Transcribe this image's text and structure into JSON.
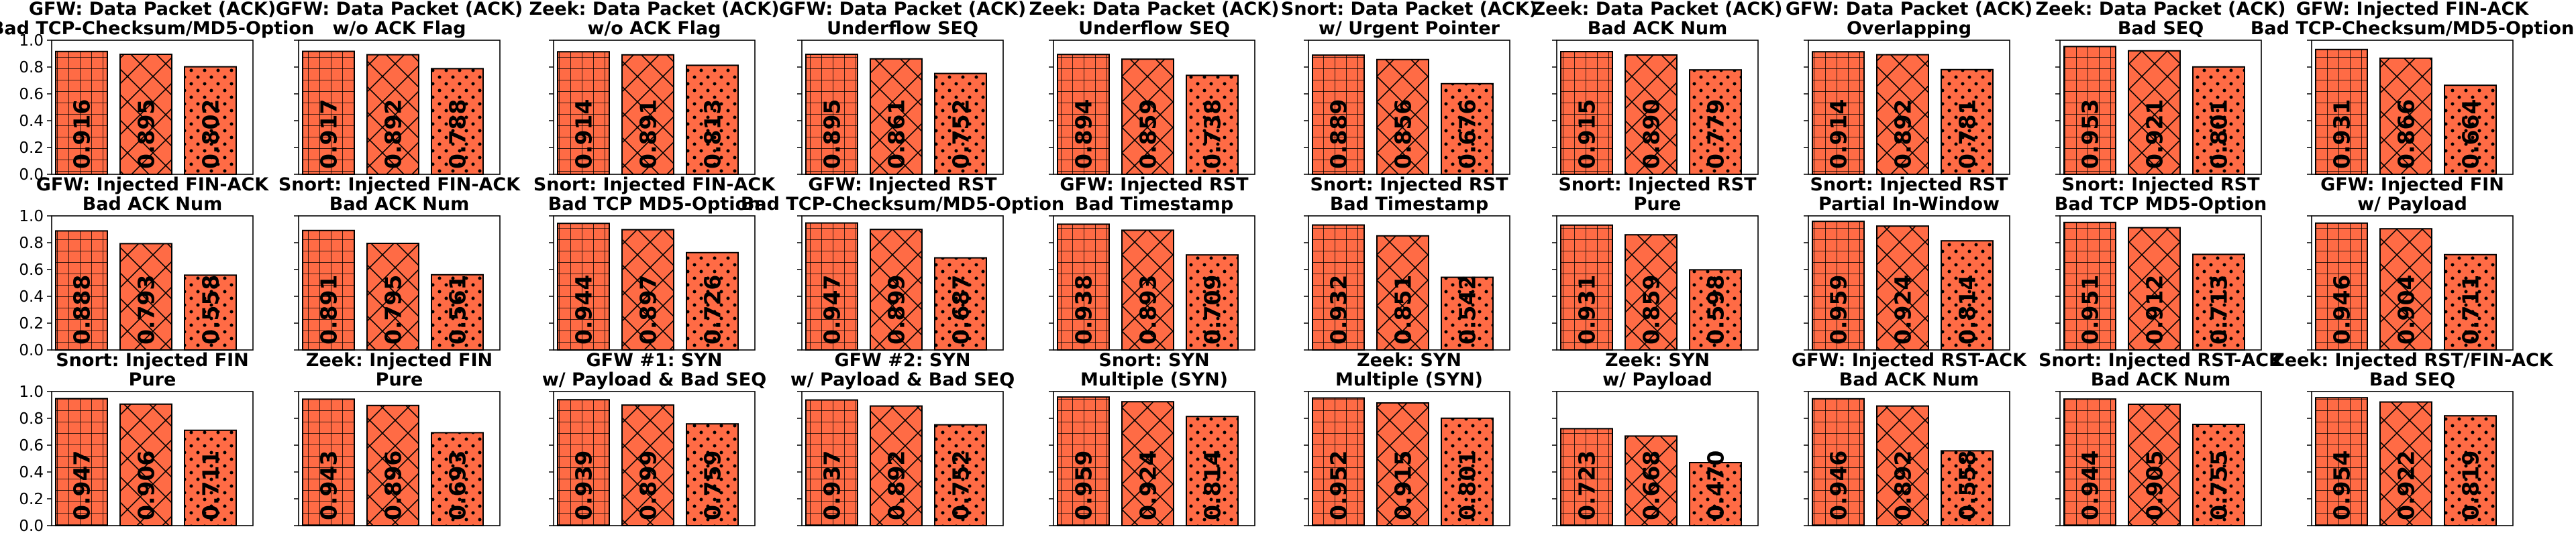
{
  "colors": {
    "bar": "#ff6b45",
    "hatch": "#000000",
    "frame": "#000000"
  },
  "chart_data": [
    {
      "type": "bar",
      "title": [
        "GFW: Data Packet (ACK)",
        "Bad TCP-Checksum/MD5-Option"
      ],
      "values": [
        0.916,
        0.895,
        0.802
      ],
      "labels": [
        "0.916",
        "0.895",
        "0.802"
      ],
      "ylim": [
        0,
        1.0
      ],
      "yticks": [
        "0.0",
        "0.2",
        "0.4",
        "0.6",
        "0.8",
        "1.0"
      ],
      "hatches": [
        "grid",
        "cross",
        "dots"
      ]
    },
    {
      "type": "bar",
      "title": [
        "GFW: Data Packet (ACK)",
        "w/o ACK Flag"
      ],
      "values": [
        0.917,
        0.892,
        0.788
      ],
      "labels": [
        "0.917",
        "0.892",
        "0.788"
      ],
      "ylim": [
        0,
        1.0
      ],
      "hatches": [
        "grid",
        "cross",
        "dots"
      ]
    },
    {
      "type": "bar",
      "title": [
        "Zeek: Data Packet (ACK)",
        "w/o ACK Flag"
      ],
      "values": [
        0.914,
        0.891,
        0.813
      ],
      "labels": [
        "0.914",
        "0.891",
        "0.813"
      ],
      "ylim": [
        0,
        1.0
      ],
      "hatches": [
        "grid",
        "cross",
        "dots"
      ]
    },
    {
      "type": "bar",
      "title": [
        "GFW: Data Packet (ACK)",
        "Underflow SEQ"
      ],
      "values": [
        0.895,
        0.861,
        0.752
      ],
      "labels": [
        "0.895",
        "0.861",
        "0.752"
      ],
      "ylim": [
        0,
        1.0
      ],
      "hatches": [
        "grid",
        "cross",
        "dots"
      ]
    },
    {
      "type": "bar",
      "title": [
        "Zeek: Data Packet (ACK)",
        "Underflow SEQ"
      ],
      "values": [
        0.894,
        0.859,
        0.738
      ],
      "labels": [
        "0.894",
        "0.859",
        "0.738"
      ],
      "ylim": [
        0,
        1.0
      ],
      "hatches": [
        "grid",
        "cross",
        "dots"
      ]
    },
    {
      "type": "bar",
      "title": [
        "Snort: Data Packet (ACK)",
        "w/ Urgent Pointer"
      ],
      "values": [
        0.889,
        0.856,
        0.676
      ],
      "labels": [
        "0.889",
        "0.856",
        "0.676"
      ],
      "ylim": [
        0,
        1.0
      ],
      "hatches": [
        "grid",
        "cross",
        "dots"
      ]
    },
    {
      "type": "bar",
      "title": [
        "Zeek: Data Packet (ACK)",
        "Bad ACK Num"
      ],
      "values": [
        0.915,
        0.89,
        0.779
      ],
      "labels": [
        "0.915",
        "0.890",
        "0.779"
      ],
      "ylim": [
        0,
        1.0
      ],
      "hatches": [
        "grid",
        "cross",
        "dots"
      ]
    },
    {
      "type": "bar",
      "title": [
        "GFW: Data Packet (ACK)",
        "Overlapping"
      ],
      "values": [
        0.914,
        0.892,
        0.781
      ],
      "labels": [
        "0.914",
        "0.892",
        "0.781"
      ],
      "ylim": [
        0,
        1.0
      ],
      "hatches": [
        "grid",
        "cross",
        "dots"
      ]
    },
    {
      "type": "bar",
      "title": [
        "Zeek: Data Packet (ACK)",
        "Bad SEQ"
      ],
      "values": [
        0.953,
        0.921,
        0.801
      ],
      "labels": [
        "0.953",
        "0.921",
        "0.801"
      ],
      "ylim": [
        0,
        1.0
      ],
      "hatches": [
        "grid",
        "cross",
        "dots"
      ]
    },
    {
      "type": "bar",
      "title": [
        "GFW: Injected FIN-ACK",
        "Bad TCP-Checksum/MD5-Option"
      ],
      "values": [
        0.931,
        0.866,
        0.664
      ],
      "labels": [
        "0.931",
        "0.866",
        "0.664"
      ],
      "ylim": [
        0,
        1.0
      ],
      "hatches": [
        "grid",
        "cross",
        "dots"
      ]
    },
    {
      "type": "bar",
      "title": [
        "GFW: Injected FIN-ACK",
        "Bad ACK Num"
      ],
      "values": [
        0.888,
        0.793,
        0.558
      ],
      "labels": [
        "0.888",
        "0.793",
        "0.558"
      ],
      "ylim": [
        0,
        1.0
      ],
      "yticks": [
        "0.0",
        "0.2",
        "0.4",
        "0.6",
        "0.8",
        "1.0"
      ],
      "hatches": [
        "grid",
        "cross",
        "dots"
      ]
    },
    {
      "type": "bar",
      "title": [
        "Snort: Injected FIN-ACK",
        "Bad ACK Num"
      ],
      "values": [
        0.891,
        0.795,
        0.561
      ],
      "labels": [
        "0.891",
        "0.795",
        "0.561"
      ],
      "ylim": [
        0,
        1.0
      ],
      "hatches": [
        "grid",
        "cross",
        "dots"
      ]
    },
    {
      "type": "bar",
      "title": [
        "Snort: Injected FIN-ACK",
        "Bad TCP MD5-Option"
      ],
      "values": [
        0.944,
        0.897,
        0.726
      ],
      "labels": [
        "0.944",
        "0.897",
        "0.726"
      ],
      "ylim": [
        0,
        1.0
      ],
      "hatches": [
        "grid",
        "cross",
        "dots"
      ]
    },
    {
      "type": "bar",
      "title": [
        "GFW: Injected RST",
        "Bad TCP-Checksum/MD5-Option"
      ],
      "values": [
        0.947,
        0.899,
        0.687
      ],
      "labels": [
        "0.947",
        "0.899",
        "0.687"
      ],
      "ylim": [
        0,
        1.0
      ],
      "hatches": [
        "grid",
        "cross",
        "dots"
      ]
    },
    {
      "type": "bar",
      "title": [
        "GFW: Injected RST",
        "Bad Timestamp"
      ],
      "values": [
        0.938,
        0.893,
        0.709
      ],
      "labels": [
        "0.938",
        "0.893",
        "0.709"
      ],
      "ylim": [
        0,
        1.0
      ],
      "hatches": [
        "grid",
        "cross",
        "dots"
      ]
    },
    {
      "type": "bar",
      "title": [
        "Snort: Injected RST",
        "Bad Timestamp"
      ],
      "values": [
        0.932,
        0.851,
        0.542
      ],
      "labels": [
        "0.932",
        "0.851",
        "0.542"
      ],
      "ylim": [
        0,
        1.0
      ],
      "hatches": [
        "grid",
        "cross",
        "dots"
      ]
    },
    {
      "type": "bar",
      "title": [
        "Snort: Injected RST",
        "Pure"
      ],
      "values": [
        0.931,
        0.859,
        0.598
      ],
      "labels": [
        "0.931",
        "0.859",
        "0.598"
      ],
      "ylim": [
        0,
        1.0
      ],
      "hatches": [
        "grid",
        "cross",
        "dots"
      ]
    },
    {
      "type": "bar",
      "title": [
        "Snort: Injected RST",
        "Partial In-Window"
      ],
      "values": [
        0.959,
        0.924,
        0.814
      ],
      "labels": [
        "0.959",
        "0.924",
        "0.814"
      ],
      "ylim": [
        0,
        1.0
      ],
      "hatches": [
        "grid",
        "cross",
        "dots"
      ]
    },
    {
      "type": "bar",
      "title": [
        "Snort: Injected RST",
        "Bad TCP MD5-Option"
      ],
      "values": [
        0.951,
        0.912,
        0.713
      ],
      "labels": [
        "0.951",
        "0.912",
        "0.713"
      ],
      "ylim": [
        0,
        1.0
      ],
      "hatches": [
        "grid",
        "cross",
        "dots"
      ]
    },
    {
      "type": "bar",
      "title": [
        "GFW: Injected FIN",
        "w/ Payload"
      ],
      "values": [
        0.946,
        0.904,
        0.711
      ],
      "labels": [
        "0.946",
        "0.904",
        "0.711"
      ],
      "ylim": [
        0,
        1.0
      ],
      "hatches": [
        "grid",
        "cross",
        "dots"
      ]
    },
    {
      "type": "bar",
      "title": [
        "Snort: Injected FIN",
        "Pure"
      ],
      "values": [
        0.947,
        0.906,
        0.711
      ],
      "labels": [
        "0.947",
        "0.906",
        "0.711"
      ],
      "ylim": [
        0,
        1.0
      ],
      "yticks": [
        "0.0",
        "0.2",
        "0.4",
        "0.6",
        "0.8",
        "1.0"
      ],
      "hatches": [
        "grid",
        "cross",
        "dots"
      ]
    },
    {
      "type": "bar",
      "title": [
        "Zeek: Injected FIN",
        "Pure"
      ],
      "values": [
        0.943,
        0.896,
        0.693
      ],
      "labels": [
        "0.943",
        "0.896",
        "0.693"
      ],
      "ylim": [
        0,
        1.0
      ],
      "hatches": [
        "grid",
        "cross",
        "dots"
      ]
    },
    {
      "type": "bar",
      "title": [
        "GFW #1: SYN",
        "w/ Payload & Bad SEQ"
      ],
      "values": [
        0.939,
        0.899,
        0.759
      ],
      "labels": [
        "0.939",
        "0.899",
        "0.759"
      ],
      "ylim": [
        0,
        1.0
      ],
      "hatches": [
        "grid",
        "cross",
        "dots"
      ]
    },
    {
      "type": "bar",
      "title": [
        "GFW #2: SYN",
        "w/ Payload & Bad SEQ"
      ],
      "values": [
        0.937,
        0.892,
        0.752
      ],
      "labels": [
        "0.937",
        "0.892",
        "0.752"
      ],
      "ylim": [
        0,
        1.0
      ],
      "hatches": [
        "grid",
        "cross",
        "dots"
      ]
    },
    {
      "type": "bar",
      "title": [
        "Snort: SYN",
        "Multiple (SYN)"
      ],
      "values": [
        0.959,
        0.924,
        0.814
      ],
      "labels": [
        "0.959",
        "0.924",
        "0.814"
      ],
      "ylim": [
        0,
        1.0
      ],
      "hatches": [
        "grid",
        "cross",
        "dots"
      ]
    },
    {
      "type": "bar",
      "title": [
        "Zeek: SYN",
        "Multiple (SYN)"
      ],
      "values": [
        0.952,
        0.915,
        0.801
      ],
      "labels": [
        "0.952",
        "0.915",
        "0.801"
      ],
      "ylim": [
        0,
        1.0
      ],
      "hatches": [
        "grid",
        "cross",
        "dots"
      ]
    },
    {
      "type": "bar",
      "title": [
        "Zeek: SYN",
        "w/ Payload"
      ],
      "values": [
        0.723,
        0.668,
        0.47
      ],
      "labels": [
        "0.723",
        "0.668",
        "0.470"
      ],
      "ylim": [
        0,
        1.0
      ],
      "hatches": [
        "grid",
        "cross",
        "dots"
      ]
    },
    {
      "type": "bar",
      "title": [
        "GFW: Injected RST-ACK",
        "Bad ACK Num"
      ],
      "values": [
        0.946,
        0.892,
        0.558
      ],
      "labels": [
        "0.946",
        "0.892",
        "0.558"
      ],
      "ylim": [
        0,
        1.0
      ],
      "hatches": [
        "grid",
        "cross",
        "dots"
      ]
    },
    {
      "type": "bar",
      "title": [
        "Snort: Injected RST-ACK",
        "Bad ACK Num"
      ],
      "values": [
        0.944,
        0.905,
        0.755
      ],
      "labels": [
        "0.944",
        "0.905",
        "0.755"
      ],
      "ylim": [
        0,
        1.0
      ],
      "hatches": [
        "grid",
        "cross",
        "dots"
      ]
    },
    {
      "type": "bar",
      "title": [
        "Zeek: Injected RST/FIN-ACK",
        "Bad SEQ"
      ],
      "values": [
        0.954,
        0.922,
        0.819
      ],
      "labels": [
        "0.954",
        "0.922",
        "0.819"
      ],
      "ylim": [
        0,
        1.0
      ],
      "hatches": [
        "grid",
        "cross",
        "dots"
      ]
    }
  ]
}
